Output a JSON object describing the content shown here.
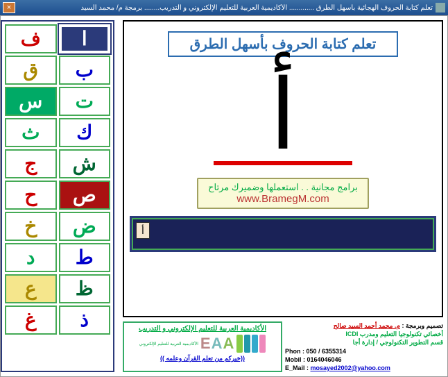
{
  "window": {
    "title": "تعلم كتابة الحروف الهجائية بأسهل الطرق ............. الأكاديمية العربية للتعليم الإلكتروني و التدريب........ برمجة م/ محمد السيد"
  },
  "lesson": {
    "title": "تعلم كتابة الحروف بأسهل الطرق",
    "current_letter": "أ",
    "mini_letter": "أ"
  },
  "promo": {
    "line1": "برامج مجانية . . استعملها وضميرك مرتاح",
    "line2": "www.BramegM.com"
  },
  "letters": [
    {
      "char": "ا",
      "fg": "#0a5",
      "bg": "#fff",
      "selected": true
    },
    {
      "char": "ف",
      "fg": "#c00",
      "bg": "#fff"
    },
    {
      "char": "ب",
      "fg": "#00c",
      "bg": "#fff"
    },
    {
      "char": "ق",
      "fg": "#a80",
      "bg": "#fff"
    },
    {
      "char": "ت",
      "fg": "#0a5",
      "bg": "#fff"
    },
    {
      "char": "س",
      "fg": "#fff",
      "bg": "#0a6"
    },
    {
      "char": "ك",
      "fg": "#00c",
      "bg": "#fff"
    },
    {
      "char": "ث",
      "fg": "#0a5",
      "bg": "#fff"
    },
    {
      "char": "ش",
      "fg": "#063",
      "bg": "#fff"
    },
    {
      "char": "ج",
      "fg": "#c00",
      "bg": "#fff"
    },
    {
      "char": "ص",
      "fg": "#fff",
      "bg": "#a11"
    },
    {
      "char": "ح",
      "fg": "#c00",
      "bg": "#fff"
    },
    {
      "char": "ض",
      "fg": "#0a5",
      "bg": "#fff"
    },
    {
      "char": "خ",
      "fg": "#a80",
      "bg": "#fff"
    },
    {
      "char": "ط",
      "fg": "#00c",
      "bg": "#fff"
    },
    {
      "char": "د",
      "fg": "#0a5",
      "bg": "#fff"
    },
    {
      "char": "ظ",
      "fg": "#063",
      "bg": "#fff"
    },
    {
      "char": "ع",
      "fg": "#a80",
      "bg": "#f5e68c"
    },
    {
      "char": "ذ",
      "fg": "#00c",
      "bg": "#fff"
    },
    {
      "char": "غ",
      "fg": "#c00",
      "bg": "#fff"
    }
  ],
  "credits": {
    "heading": "تصميم وبرمجة :",
    "name": "م. محمد أحمد السيد صالح",
    "role1": "أخصائي تكنولوجيا التعليم ومدرب ICDI",
    "role2": "قسم التطوير التكنولوجي / إدارة أجا",
    "phone": "Phon : 050 / 6355314",
    "mobile": "Mobil : 0164046046",
    "email_label": "E_Mail :",
    "email": "mosayed2002@yahoo.com"
  },
  "org": {
    "name": "الأكاديمية العربية للتعليم الإلكتروني و التدريب",
    "logo_colors": [
      "#e8b",
      "#3ac",
      "#29a",
      "#8c4"
    ],
    "logo_text": "EAA",
    "logo_text_colors": [
      "#b88",
      "#7bb",
      "#8b5"
    ],
    "subtitle": "الأكاديمية العربية للتعليم الإلكتروني",
    "slogan": "((خيركم من تعلم القرآن وعلمه ))"
  }
}
